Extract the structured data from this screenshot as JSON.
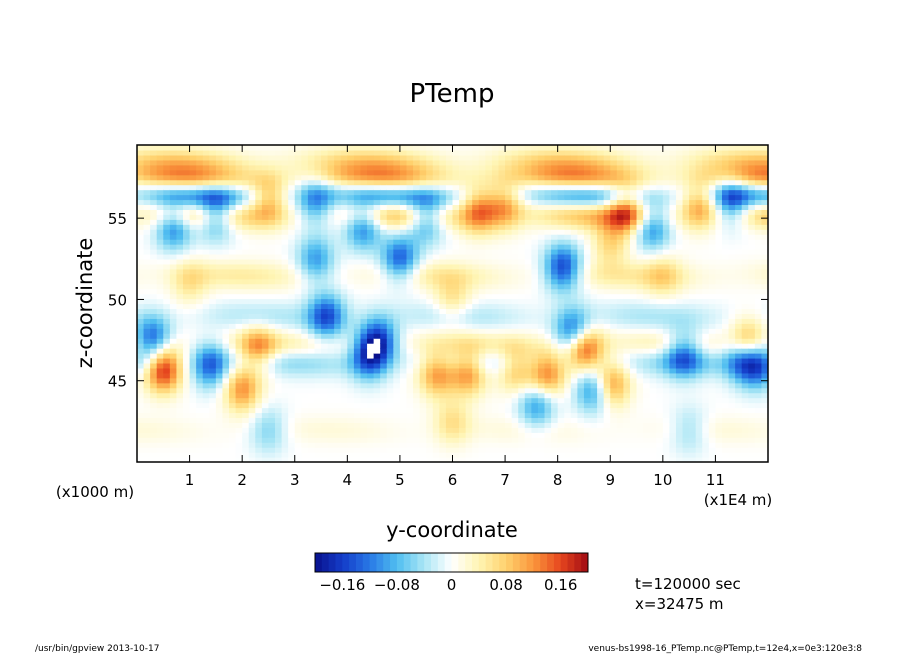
{
  "chart_data": {
    "type": "heatmap",
    "title": "PTemp",
    "xlabel": "y-coordinate",
    "ylabel": "z-coordinate",
    "x_unit_label": "(x1E4 m)",
    "y_unit_label": "(x1000 m)",
    "xlim": [
      0,
      12
    ],
    "ylim": [
      40,
      59.5
    ],
    "x_ticks": [
      1,
      2,
      3,
      4,
      5,
      6,
      7,
      8,
      9,
      10,
      11
    ],
    "y_ticks": [
      45,
      50,
      55
    ],
    "colorbar": {
      "range": [
        -0.2,
        0.2
      ],
      "tick_values": [
        -0.16,
        -0.08,
        0,
        0.08,
        0.16
      ],
      "tick_labels": [
        "−0.16",
        "−0.08",
        "0",
        "0.08",
        "0.16"
      ]
    },
    "info_lines": [
      "t=120000 sec",
      "x=32475 m"
    ],
    "features": [
      {
        "y": 0.3,
        "z": 47.5,
        "v": -0.15
      },
      {
        "y": 0.5,
        "z": 45.8,
        "v": 0.2
      },
      {
        "y": 0.7,
        "z": 54.5,
        "v": -0.12
      },
      {
        "y": 1.5,
        "z": 55.2,
        "v": -0.13
      },
      {
        "y": 1.4,
        "z": 46.0,
        "v": -0.13
      },
      {
        "y": 2.0,
        "z": 44.5,
        "v": 0.12
      },
      {
        "y": 2.3,
        "z": 47.0,
        "v": 0.1
      },
      {
        "y": 2.5,
        "z": 56.2,
        "v": 0.1
      },
      {
        "y": 3.4,
        "z": 52.5,
        "v": -0.1
      },
      {
        "y": 3.4,
        "z": 56.0,
        "v": -0.1
      },
      {
        "y": 3.6,
        "z": 49.0,
        "v": -0.14
      },
      {
        "y": 4.3,
        "z": 54.5,
        "v": -0.12
      },
      {
        "y": 4.4,
        "z": 46.5,
        "v": -0.13
      },
      {
        "y": 4.6,
        "z": 47.5,
        "v": -0.15
      },
      {
        "y": 5.0,
        "z": 52.5,
        "v": -0.14
      },
      {
        "y": 5.5,
        "z": 55.0,
        "v": -0.12
      },
      {
        "y": 5.7,
        "z": 45.5,
        "v": 0.12
      },
      {
        "y": 6.3,
        "z": 45.6,
        "v": 0.13
      },
      {
        "y": 6.5,
        "z": 55.5,
        "v": 0.12
      },
      {
        "y": 7.0,
        "z": 55.8,
        "v": 0.1
      },
      {
        "y": 7.2,
        "z": 45.8,
        "v": 0.1
      },
      {
        "y": 7.6,
        "z": 43.5,
        "v": -0.1
      },
      {
        "y": 7.8,
        "z": 45.5,
        "v": 0.14
      },
      {
        "y": 8.1,
        "z": 52.0,
        "v": -0.16
      },
      {
        "y": 8.3,
        "z": 48.0,
        "v": -0.15
      },
      {
        "y": 8.5,
        "z": 47.0,
        "v": 0.18
      },
      {
        "y": 8.7,
        "z": 44.5,
        "v": -0.13
      },
      {
        "y": 9.0,
        "z": 44.8,
        "v": 0.14
      },
      {
        "y": 9.0,
        "z": 53.5,
        "v": 0.07
      },
      {
        "y": 9.3,
        "z": 55.5,
        "v": 0.12
      },
      {
        "y": 9.8,
        "z": 54.5,
        "v": -0.12
      },
      {
        "y": 10.4,
        "z": 46.7,
        "v": -0.12
      },
      {
        "y": 10.7,
        "z": 55.8,
        "v": 0.1
      },
      {
        "y": 11.3,
        "z": 56.0,
        "v": -0.12
      },
      {
        "y": 11.5,
        "z": 46.5,
        "v": -0.14
      },
      {
        "y": 11.6,
        "z": 47.3,
        "v": 0.15
      },
      {
        "y": 11.8,
        "z": 46.0,
        "v": -0.14
      },
      {
        "y": 1.0,
        "z": 51.0,
        "v": 0.05
      },
      {
        "y": 6.0,
        "z": 50.0,
        "v": 0.06
      },
      {
        "y": 10.0,
        "z": 51.5,
        "v": 0.05
      },
      {
        "y": 2.5,
        "z": 42.0,
        "v": -0.06
      },
      {
        "y": 6.0,
        "z": 42.5,
        "v": 0.06
      },
      {
        "y": 10.5,
        "z": 42.0,
        "v": -0.05
      }
    ],
    "bands": [
      {
        "z": 58.5,
        "v": 0.08
      },
      {
        "z": 57.3,
        "v": 0.16
      },
      {
        "z": 56.6,
        "v": -0.16
      },
      {
        "z": 55.2,
        "v": 0.1
      },
      {
        "z": 51.5,
        "v": 0.05
      },
      {
        "z": 49.0,
        "v": -0.04
      },
      {
        "z": 47.2,
        "v": 0.05
      },
      {
        "z": 46.2,
        "v": -0.06
      },
      {
        "z": 42.0,
        "v": 0.02
      }
    ]
  },
  "footer": {
    "left": "/usr/bin/gpview  2013-10-17",
    "right": "venus-bs1998-16_PTemp.nc@PTemp,t=12e4,x=0e3:120e3:8"
  }
}
